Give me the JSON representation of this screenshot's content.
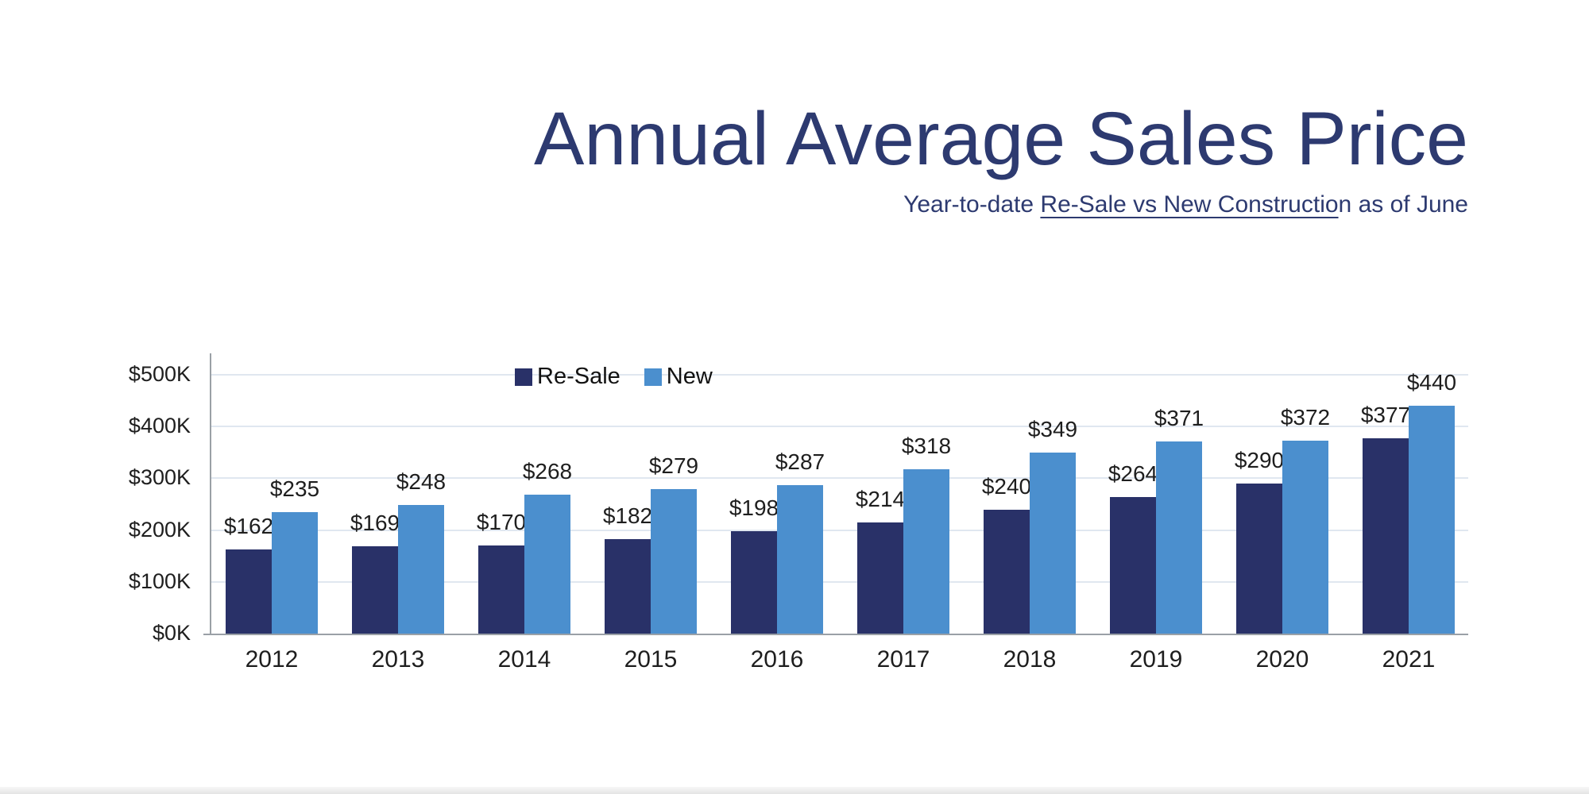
{
  "page": {
    "background": "#ffffff"
  },
  "colors": {
    "title_navy": "#2d3a70",
    "resale_bar": "#293168",
    "new_bar": "#4b8fce",
    "gridline": "#e0e7f0",
    "axis_line": "#9aa0a6",
    "label_text": "#1e1e1e",
    "bottom_band": "#e8e8e8"
  },
  "chart_data": {
    "type": "bar",
    "title": "Annual Average Sales Price",
    "subtitle": "Year-to-date Re-Sale vs New Construction as of June",
    "subtitle_parts": {
      "prefix": "Year-to-date ",
      "underlined": "Re-Sale vs New Constructio",
      "suffix": "n as of June"
    },
    "categories": [
      "2012",
      "2013",
      "2014",
      "2015",
      "2016",
      "2017",
      "2018",
      "2019",
      "2020",
      "2021"
    ],
    "series": [
      {
        "name": "Re-Sale",
        "color": "#293168",
        "values": [
          162,
          169,
          170,
          182,
          198,
          214,
          240,
          264,
          290,
          377
        ],
        "labels": [
          "$162",
          "$169",
          "$170",
          "$182",
          "$198",
          "$214",
          "$240",
          "$264",
          "$290",
          "$377"
        ]
      },
      {
        "name": "New",
        "color": "#4b8fce",
        "values": [
          235,
          248,
          268,
          279,
          287,
          318,
          349,
          371,
          372,
          440
        ],
        "labels": [
          "$235",
          "$248",
          "$268",
          "$279",
          "$287",
          "$318",
          "$349",
          "$371",
          "$372",
          "$440"
        ]
      }
    ],
    "units": "thousands of USD",
    "ylim_thousands": [
      0,
      500
    ],
    "y_ticks": [
      {
        "value": 0,
        "label": "$0K"
      },
      {
        "value": 100,
        "label": "$100K"
      },
      {
        "value": 200,
        "label": "$200K"
      },
      {
        "value": 300,
        "label": "$300K"
      },
      {
        "value": 400,
        "label": "$400K"
      },
      {
        "value": 500,
        "label": "$500K"
      }
    ],
    "grid": "horizontal",
    "legend_position": "top-inside",
    "data_labels": true
  }
}
